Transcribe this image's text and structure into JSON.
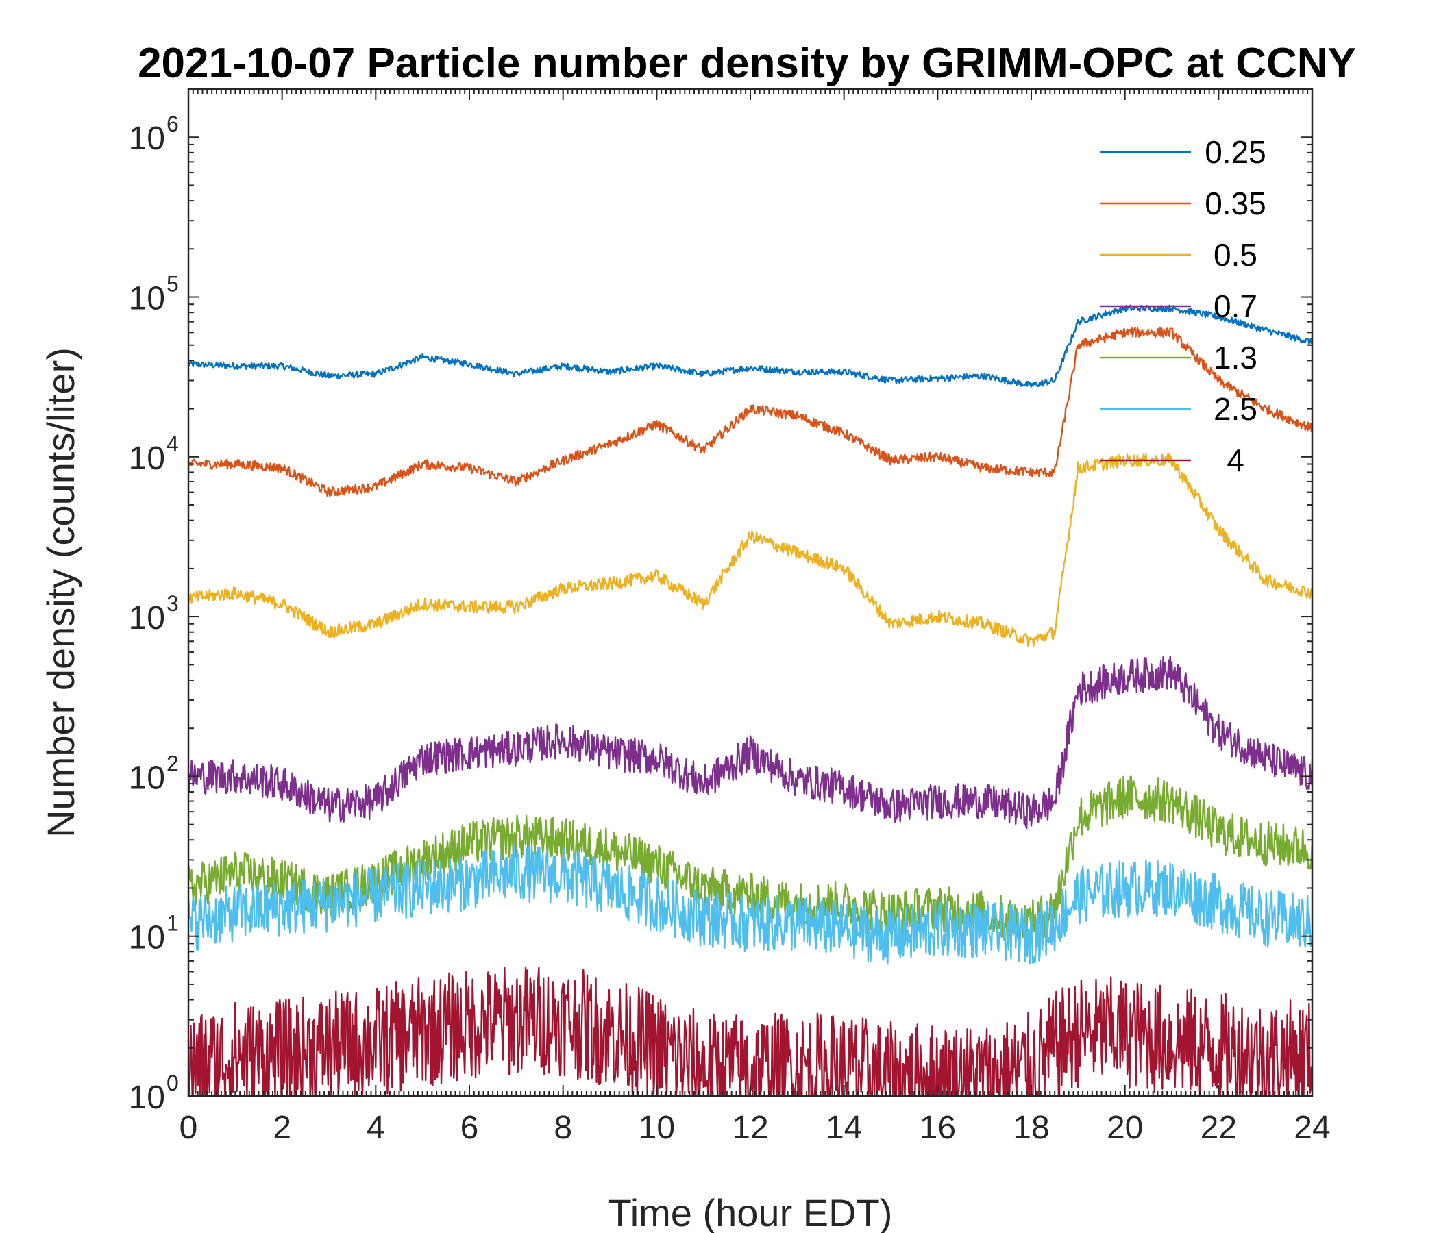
{
  "chart_data": {
    "type": "line",
    "title": "2021-10-07 Particle number density by GRIMM-OPC at CCNY",
    "xlabel": "Time (hour EDT)",
    "ylabel": "Number density (counts/liter)",
    "xlim": [
      0,
      24
    ],
    "ylim": [
      1,
      2000000
    ],
    "yscale": "log",
    "xticks": [
      0,
      2,
      4,
      6,
      8,
      10,
      12,
      14,
      16,
      18,
      20,
      22,
      24
    ],
    "xtick_labels": [
      "0",
      "2",
      "4",
      "6",
      "8",
      "10",
      "12",
      "14",
      "16",
      "18",
      "20",
      "22",
      "24"
    ],
    "yticks": [
      1,
      10,
      100,
      1000,
      10000,
      100000,
      1000000
    ],
    "ytick_labels": [
      {
        "base": "10",
        "exp": "0"
      },
      {
        "base": "10",
        "exp": "1"
      },
      {
        "base": "10",
        "exp": "2"
      },
      {
        "base": "10",
        "exp": "3"
      },
      {
        "base": "10",
        "exp": "4"
      },
      {
        "base": "10",
        "exp": "5"
      },
      {
        "base": "10",
        "exp": "6"
      }
    ],
    "legend_position": "top-right",
    "x": [
      0,
      1,
      2,
      3,
      4,
      5,
      6,
      7,
      8,
      9,
      10,
      11,
      12,
      13,
      14,
      15,
      16,
      17,
      18,
      18.5,
      19,
      20,
      21,
      22,
      23,
      24
    ],
    "series": [
      {
        "name": "0.25",
        "color": "#0072bd",
        "noise": 0.02,
        "values": [
          38000,
          37000,
          37000,
          32000,
          33000,
          42000,
          38000,
          33000,
          37000,
          34000,
          37000,
          33000,
          36000,
          34000,
          34000,
          30000,
          31000,
          32000,
          28000,
          30000,
          70000,
          85000,
          85000,
          75000,
          62000,
          52000
        ]
      },
      {
        "name": "0.35",
        "color": "#d95319",
        "noise": 0.03,
        "values": [
          9000,
          9000,
          8500,
          6000,
          6500,
          9000,
          8500,
          7000,
          9500,
          12000,
          16000,
          11000,
          20000,
          18000,
          14000,
          9500,
          10000,
          8500,
          8000,
          8000,
          50000,
          60000,
          60000,
          30000,
          20000,
          15000
        ]
      },
      {
        "name": "0.5",
        "color": "#edb120",
        "noise": 0.04,
        "values": [
          1300,
          1400,
          1200,
          800,
          900,
          1200,
          1150,
          1150,
          1500,
          1600,
          1800,
          1200,
          3200,
          2500,
          2000,
          900,
          1000,
          900,
          700,
          800,
          8500,
          9500,
          9500,
          3500,
          1700,
          1400
        ]
      },
      {
        "name": "0.7",
        "color": "#7e2f8e",
        "noise": 0.11,
        "values": [
          100,
          100,
          90,
          65,
          70,
          130,
          140,
          150,
          170,
          140,
          130,
          90,
          140,
          95,
          85,
          65,
          70,
          70,
          60,
          70,
          350,
          420,
          450,
          190,
          130,
          100
        ]
      },
      {
        "name": "1.3",
        "color": "#77ac30",
        "noise": 0.14,
        "values": [
          20,
          25,
          22,
          18,
          22,
          30,
          38,
          42,
          40,
          35,
          28,
          20,
          18,
          16,
          16,
          14,
          15,
          14,
          12,
          15,
          55,
          75,
          70,
          45,
          38,
          35
        ]
      },
      {
        "name": "2.5",
        "color": "#4dbeee",
        "noise": 0.18,
        "values": [
          12,
          14,
          15,
          16,
          18,
          20,
          22,
          25,
          24,
          20,
          16,
          13,
          12,
          12,
          11,
          10,
          11,
          11,
          10,
          12,
          18,
          20,
          20,
          16,
          13,
          12
        ]
      },
      {
        "name": "4",
        "color": "#a2142f",
        "noise": 0.35,
        "values": [
          1.5,
          1.8,
          1.8,
          2.0,
          2.2,
          2.5,
          2.8,
          3.0,
          3.0,
          2.5,
          2.0,
          1.5,
          1.5,
          1.5,
          1.5,
          1.3,
          1.3,
          1.3,
          1.5,
          2.0,
          2.5,
          2.5,
          2.2,
          2.0,
          1.8,
          1.8
        ]
      }
    ]
  }
}
